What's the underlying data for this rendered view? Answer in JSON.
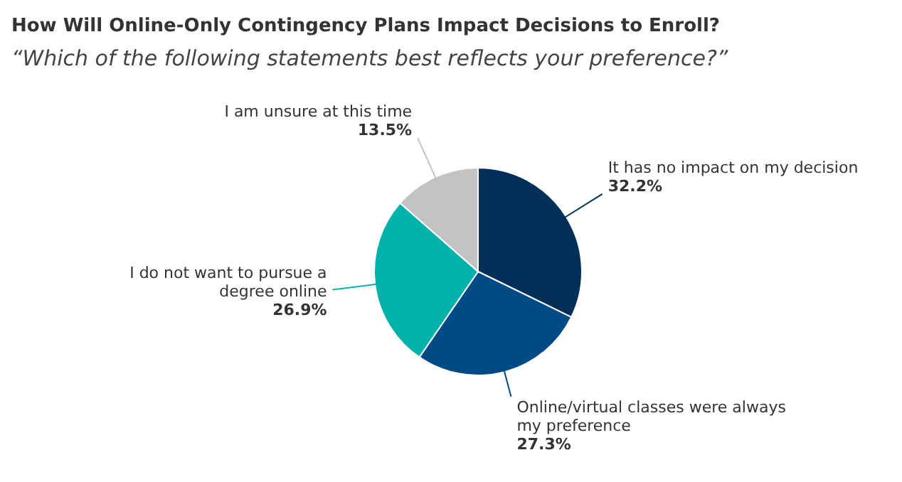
{
  "chart_data": {
    "type": "pie",
    "title": "How Will Online-Only Contingency Plans Impact Decisions to Enroll?",
    "subtitle": "“Which of the following statements best reflects your preference?”",
    "categories": [
      "It has no impact on my decision",
      "Online/virtual classes were always my preference",
      "I do not want to pursue a degree online",
      "I am unsure at this time"
    ],
    "values": [
      32.2,
      27.3,
      26.9,
      13.5
    ],
    "colors": [
      "#003057",
      "#004b87",
      "#00b2a9",
      "#c1c3c5"
    ],
    "value_labels": [
      "32.2%",
      "27.3%",
      "26.9%",
      "13.5%"
    ],
    "legend": false
  }
}
